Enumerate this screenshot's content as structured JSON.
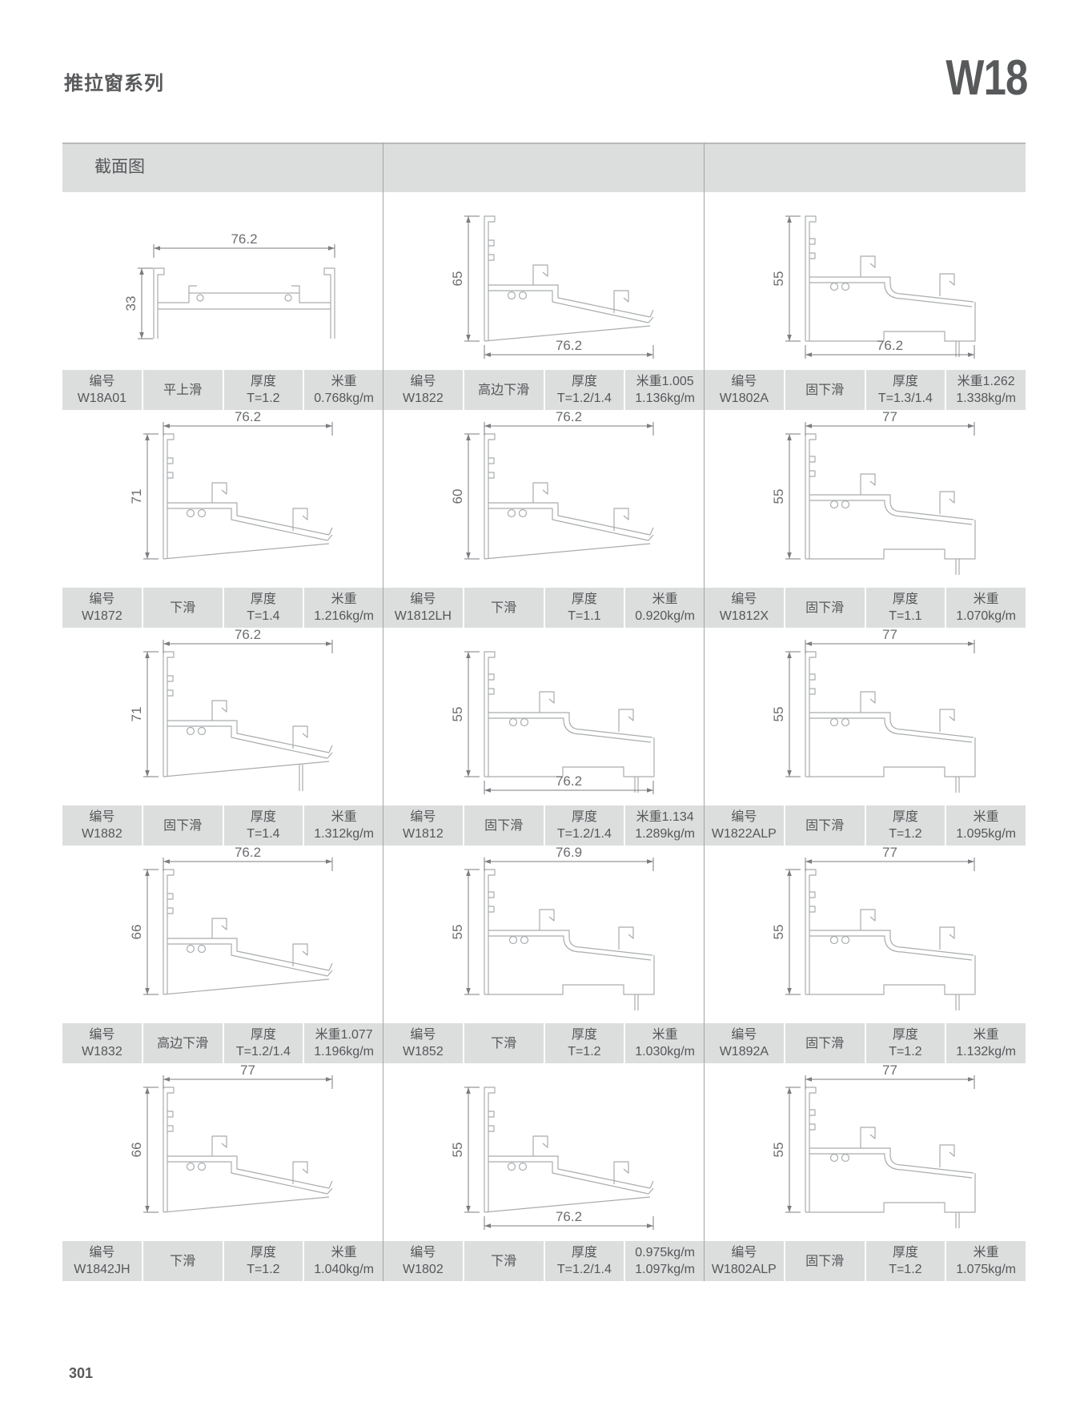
{
  "page": {
    "series_title": "推拉窗系列",
    "series_code": "W18",
    "section_header": "截面图",
    "page_number": "301"
  },
  "labels": {
    "code_label": "编号",
    "thickness_label": "厚度",
    "weight_label": "米重"
  },
  "colors": {
    "table_gray": "#dcdddd",
    "text_gray": "#565759",
    "divider_gray": "#a3a5a7",
    "profile_line": "#a9acae",
    "dim_line": "#7b7d80",
    "dim_text": "#6b6d70"
  },
  "cells": [
    {
      "code": "W18A01",
      "name": "平上滑",
      "thickness": "T=1.2",
      "weight_line1": "米重",
      "weight_line2": "0.768kg/m",
      "dim_width": "76.2",
      "dim_width_pos": "top",
      "dim_height": "33",
      "profile_type": "flat"
    },
    {
      "code": "W1822",
      "name": "高边下滑",
      "thickness": "T=1.2/1.4",
      "weight_line1": "米重1.005",
      "weight_line2": "1.136kg/m",
      "dim_width": "76.2",
      "dim_width_pos": "bottom",
      "dim_height": "65",
      "profile_type": "slope"
    },
    {
      "code": "W1802A",
      "name": "固下滑",
      "thickness": "T=1.3/1.4",
      "weight_line1": "米重1.262",
      "weight_line2": "1.338kg/m",
      "dim_width": "76.2",
      "dim_width_pos": "bottom",
      "dim_height": "55",
      "profile_type": "step"
    },
    {
      "code": "W1872",
      "name": "下滑",
      "thickness": "T=1.4",
      "weight_line1": "米重",
      "weight_line2": "1.216kg/m",
      "dim_width": "76.2",
      "dim_width_pos": "top",
      "dim_height": "71",
      "profile_type": "slope"
    },
    {
      "code": "W1812LH",
      "name": "下滑",
      "thickness": "T=1.1",
      "weight_line1": "米重",
      "weight_line2": "0.920kg/m",
      "dim_width": "76.2",
      "dim_width_pos": "top",
      "dim_height": "60",
      "profile_type": "slope"
    },
    {
      "code": "W1812X",
      "name": "固下滑",
      "thickness": "T=1.1",
      "weight_line1": "米重",
      "weight_line2": "1.070kg/m",
      "dim_width": "77",
      "dim_width_pos": "top",
      "dim_height": "55",
      "profile_type": "step"
    },
    {
      "code": "W1882",
      "name": "固下滑",
      "thickness": "T=1.4",
      "weight_line1": "米重",
      "weight_line2": "1.312kg/m",
      "dim_width": "76.2",
      "dim_width_pos": "top",
      "dim_height": "71",
      "profile_type": "slope-leg"
    },
    {
      "code": "W1812",
      "name": "固下滑",
      "thickness": "T=1.2/1.4",
      "weight_line1": "米重1.134",
      "weight_line2": "1.289kg/m",
      "dim_width": "76.2",
      "dim_width_pos": "bottom",
      "dim_height": "55",
      "profile_type": "step"
    },
    {
      "code": "W1822ALP",
      "name": "固下滑",
      "thickness": "T=1.2",
      "weight_line1": "米重",
      "weight_line2": "1.095kg/m",
      "dim_width": "77",
      "dim_width_pos": "top",
      "dim_height": "55",
      "profile_type": "step"
    },
    {
      "code": "W1832",
      "name": "高边下滑",
      "thickness": "T=1.2/1.4",
      "weight_line1": "米重1.077",
      "weight_line2": "1.196kg/m",
      "dim_width": "76.2",
      "dim_width_pos": "top",
      "dim_height": "66",
      "profile_type": "slope"
    },
    {
      "code": "W1852",
      "name": "下滑",
      "thickness": "T=1.2",
      "weight_line1": "米重",
      "weight_line2": "1.030kg/m",
      "dim_width": "76.9",
      "dim_width_pos": "top",
      "dim_height": "55",
      "profile_type": "step"
    },
    {
      "code": "W1892A",
      "name": "固下滑",
      "thickness": "T=1.2",
      "weight_line1": "米重",
      "weight_line2": "1.132kg/m",
      "dim_width": "77",
      "dim_width_pos": "top",
      "dim_height": "55",
      "profile_type": "step"
    },
    {
      "code": "W1842JH",
      "name": "下滑",
      "thickness": "T=1.2",
      "weight_line1": "米重",
      "weight_line2": "1.040kg/m",
      "dim_width": "77",
      "dim_width_pos": "top",
      "dim_height": "66",
      "profile_type": "slope"
    },
    {
      "code": "W1802",
      "name": "下滑",
      "thickness": "T=1.2/1.4",
      "weight_line1": "0.975kg/m",
      "weight_line2": "1.097kg/m",
      "dim_width": "76.2",
      "dim_width_pos": "bottom",
      "dim_height": "55",
      "profile_type": "slope"
    },
    {
      "code": "W1802ALP",
      "name": "固下滑",
      "thickness": "T=1.2",
      "weight_line1": "米重",
      "weight_line2": "1.075kg/m",
      "dim_width": "77",
      "dim_width_pos": "top",
      "dim_height": "55",
      "profile_type": "step"
    }
  ]
}
